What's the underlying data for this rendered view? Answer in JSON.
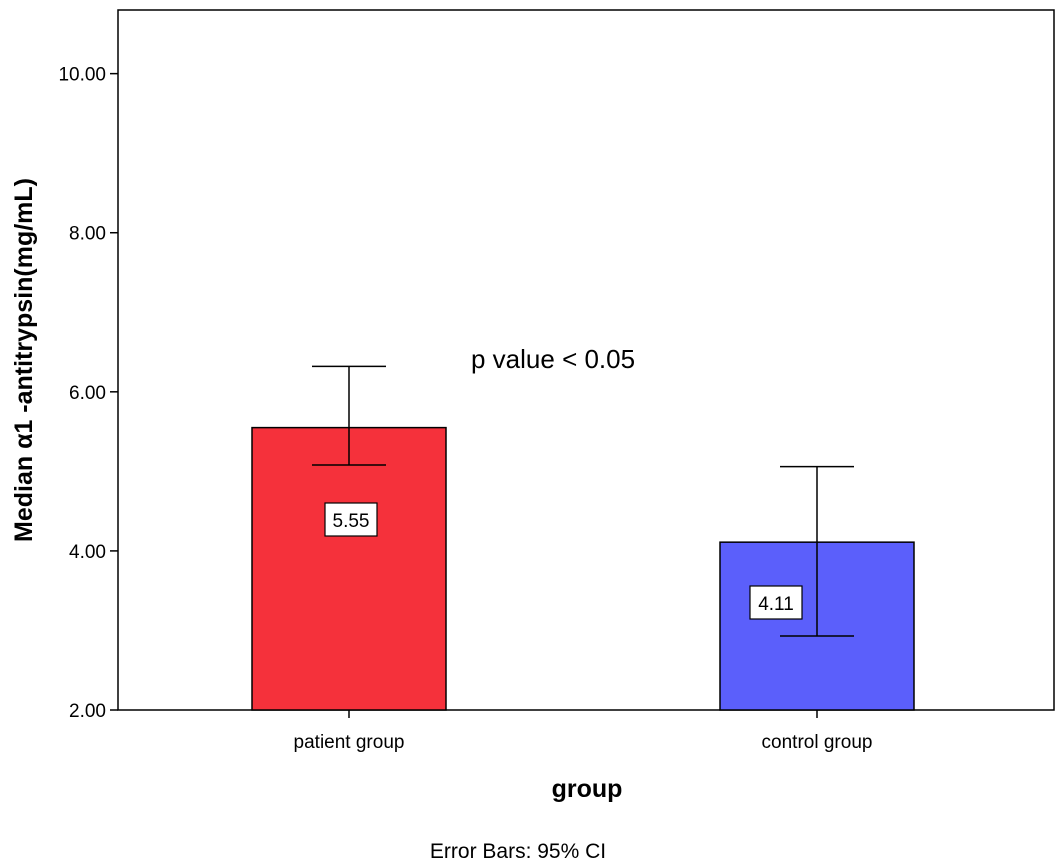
{
  "chart_data": {
    "type": "bar",
    "categories": [
      "patient group",
      "control group"
    ],
    "values": [
      5.55,
      4.11
    ],
    "value_labels": [
      "5.55",
      "4.11"
    ],
    "error_bars": [
      {
        "low": 5.08,
        "high": 6.32
      },
      {
        "low": 2.93,
        "high": 5.06
      }
    ],
    "colors": [
      "#f5313b",
      "#5b5ffb"
    ],
    "xlabel": "group",
    "ylabel": "Median α1 -antitrypsin(mg/mL)",
    "ylim": [
      2,
      10.8
    ],
    "yticks": [
      2,
      4,
      6,
      8,
      10
    ],
    "ytick_labels": [
      "2.00",
      "4.00",
      "6.00",
      "8.00",
      "10.00"
    ],
    "annotation": "p value < 0.05",
    "footnote": "Error Bars: 95% CI",
    "grid": false,
    "legend": "none"
  }
}
